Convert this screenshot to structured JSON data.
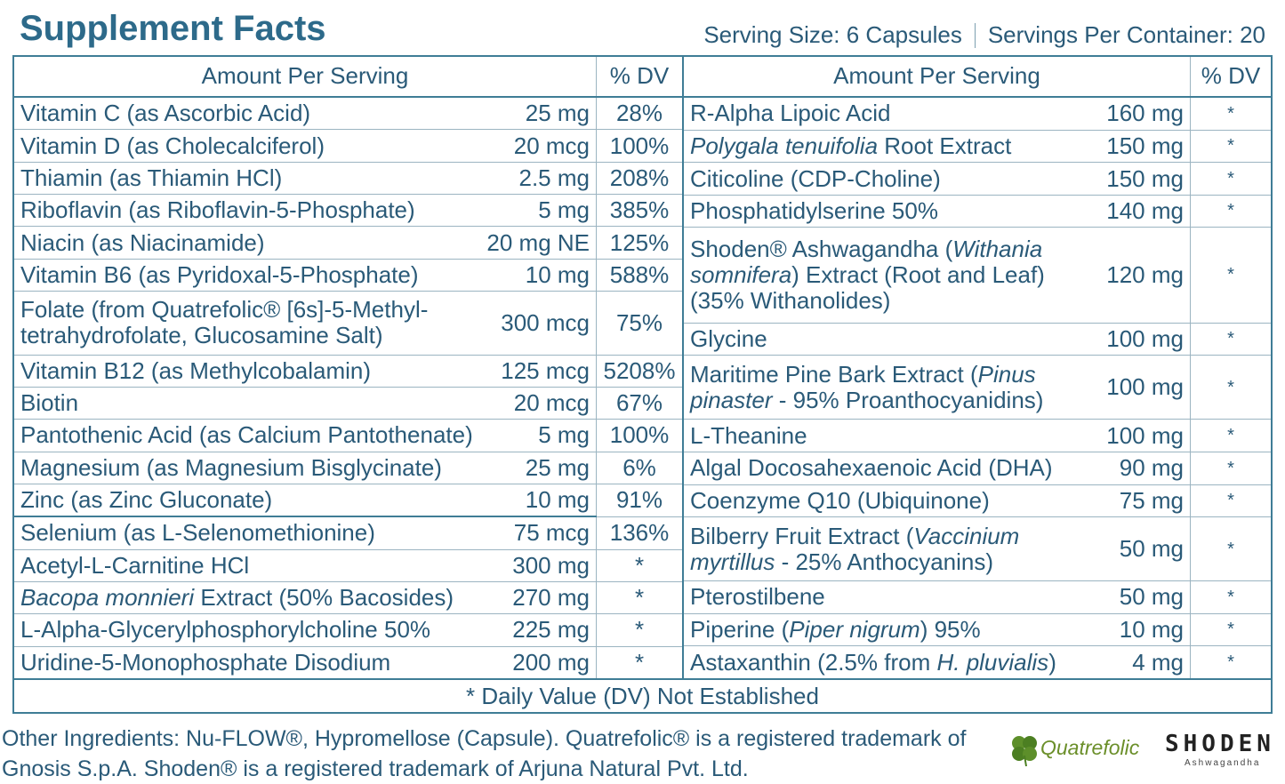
{
  "header": {
    "title": "Supplement Facts",
    "serving_size": "Serving Size: 6 Capsules",
    "servings_per_container": "Servings Per Container: 20"
  },
  "left_table": {
    "headers": [
      "Amount Per Serving",
      "% DV"
    ],
    "rows": [
      {
        "name": "Vitamin C (as Ascorbic Acid)",
        "amount": "25 mg",
        "dv": "28%"
      },
      {
        "name": "Vitamin D (as Cholecalciferol)",
        "amount": "20 mcg",
        "dv": "100%"
      },
      {
        "name": "Thiamin (as Thiamin HCl)",
        "amount": "2.5 mg",
        "dv": "208%"
      },
      {
        "name": "Riboflavin (as Riboflavin-5-Phosphate)",
        "amount": "5 mg",
        "dv": "385%"
      },
      {
        "name": "Niacin (as Niacinamide)",
        "amount": "20 mg NE",
        "dv": "125%"
      },
      {
        "name": "Vitamin B6 (as Pyridoxal-5-Phosphate)",
        "amount": "10 mg",
        "dv": "588%"
      },
      {
        "name": "Folate (from Quatrefolic® [6s]-5-Methyl-tetrahydrofolate, Glucosamine Salt)",
        "amount": "300 mcg",
        "dv": "75%"
      },
      {
        "name": "Vitamin B12 (as Methylcobalamin)",
        "amount": "125 mcg",
        "dv": "5208%"
      },
      {
        "name": "Biotin",
        "amount": "20 mcg",
        "dv": "67%"
      },
      {
        "name": "Pantothenic Acid (as Calcium Pantothenate)",
        "amount": "5 mg",
        "dv": "100%"
      },
      {
        "name": "Magnesium (as Magnesium Bisglycinate)",
        "amount": "25 mg",
        "dv": "6%"
      },
      {
        "name": "Zinc (as Zinc Gluconate)",
        "amount": "10 mg",
        "dv": "91%"
      },
      {
        "name": "Selenium (as L-Selenomethionine)",
        "amount": "75 mcg",
        "dv": "136%"
      },
      {
        "name": "Acetyl-L-Carnitine HCl",
        "amount": "300 mg",
        "dv": "*"
      },
      {
        "name": [
          {
            "text": "Bacopa monnieri",
            "italic": true
          },
          {
            "text": " Extract (50% Bacosides)"
          }
        ],
        "amount": "270 mg",
        "dv": "*"
      },
      {
        "name": "L-Alpha-Glycerylphosphorylcholine 50%",
        "amount": "225 mg",
        "dv": "*"
      },
      {
        "name": "Uridine-5-Monophosphate Disodium",
        "amount": "200 mg",
        "dv": "*"
      }
    ]
  },
  "right_table": {
    "headers": [
      "Amount Per Serving",
      "% DV"
    ],
    "rows": [
      {
        "name": "R-Alpha Lipoic Acid",
        "amount": "160 mg",
        "dv": "*"
      },
      {
        "name": [
          {
            "text": "Polygala tenuifolia",
            "italic": true
          },
          {
            "text": " Root Extract"
          }
        ],
        "amount": "150 mg",
        "dv": "*"
      },
      {
        "name": "Citicoline (CDP-Choline)",
        "amount": "150 mg",
        "dv": "*"
      },
      {
        "name": "Phosphatidylserine 50%",
        "amount": "140 mg",
        "dv": "*"
      },
      {
        "name": [
          {
            "text": "Shoden® Ashwagandha ("
          },
          {
            "text": "Withania somnifera",
            "italic": true
          },
          {
            "text": ") Extract (Root and Leaf) (35% Withanolides)"
          }
        ],
        "amount": "120 mg",
        "dv": "*"
      },
      {
        "name": "Glycine",
        "amount": "100 mg",
        "dv": "*"
      },
      {
        "name": [
          {
            "text": "Maritime Pine Bark Extract ("
          },
          {
            "text": "Pinus pinaster",
            "italic": true
          },
          {
            "text": " - 95% Proanthocyanidins)"
          }
        ],
        "amount": "100 mg",
        "dv": "*"
      },
      {
        "name": "L-Theanine",
        "amount": "100 mg",
        "dv": "*"
      },
      {
        "name": "Algal Docosahexaenoic Acid (DHA)",
        "amount": "90 mg",
        "dv": "*"
      },
      {
        "name": "Coenzyme Q10 (Ubiquinone)",
        "amount": "75 mg",
        "dv": "*"
      },
      {
        "name": [
          {
            "text": "Bilberry Fruit Extract ("
          },
          {
            "text": "Vaccinium myrtillus",
            "italic": true
          },
          {
            "text": " - 25% Anthocyanins)"
          }
        ],
        "amount": "50 mg",
        "dv": "*"
      },
      {
        "name": "Pterostilbene",
        "amount": "50 mg",
        "dv": "*"
      },
      {
        "name": [
          {
            "text": "Piperine ("
          },
          {
            "text": "Piper nigrum",
            "italic": true
          },
          {
            "text": ") 95%"
          }
        ],
        "amount": "10 mg",
        "dv": "*"
      },
      {
        "name": [
          {
            "text": "Astaxanthin (2.5% from "
          },
          {
            "text": "H. pluvialis",
            "italic": true
          },
          {
            "text": ")"
          }
        ],
        "amount": "4 mg",
        "dv": "*"
      }
    ]
  },
  "footnote": "* Daily Value (DV) Not Established",
  "other_ingredients": "Other Ingredients: Nu-FLOW®, Hypromellose (Capsule). Quatrefolic® is a registered trademark of Gnosis S.p.A. Shoden® is a registered trademark of Arjuna Natural Pvt. Ltd.",
  "logos": {
    "quatrefolic": "Quatrefolic",
    "shoden": "SHODEN",
    "shoden_sub": "Ashwagandha"
  }
}
